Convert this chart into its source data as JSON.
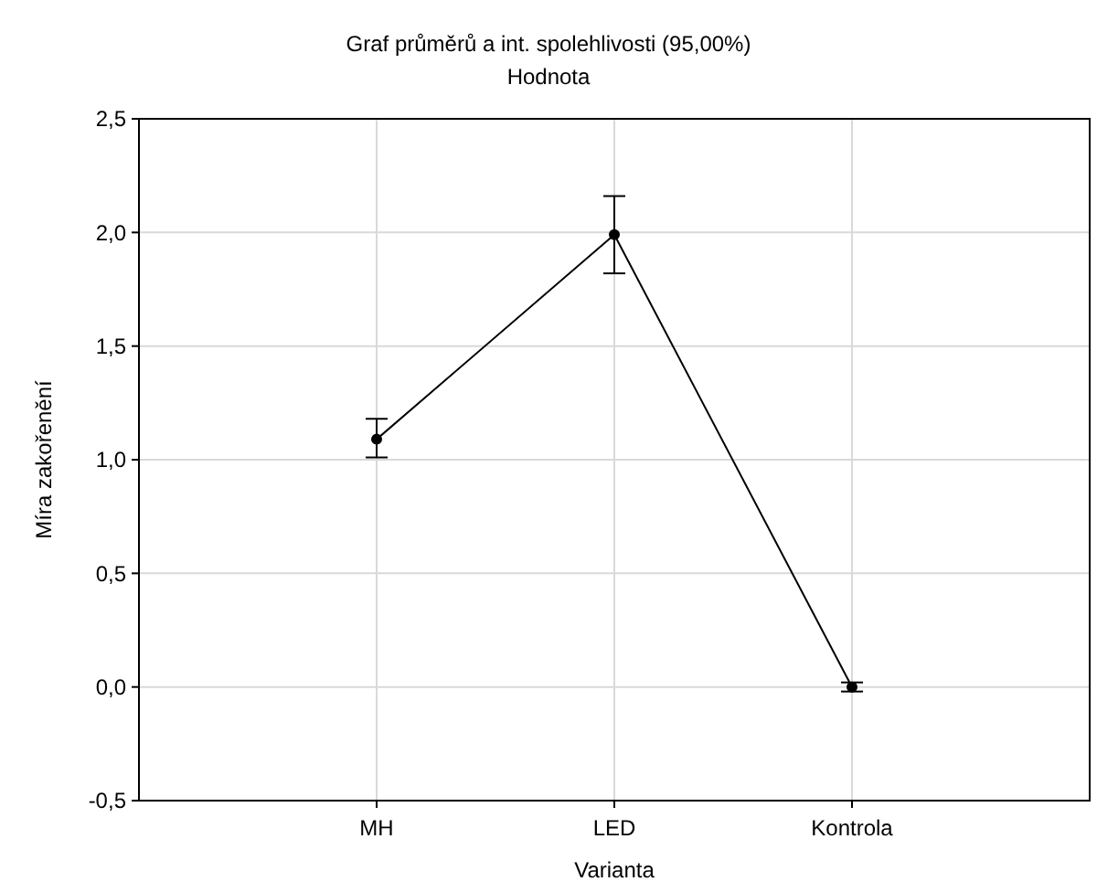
{
  "chart_data": {
    "type": "line",
    "title": "Graf průměrů a int. spolehlivosti (95,00%)",
    "subtitle": "Hodnota",
    "xlabel": "Varianta",
    "ylabel": "Míra zakořenění",
    "categories": [
      "MH",
      "LED",
      "Kontrola"
    ],
    "series": [
      {
        "color": "#000000",
        "values": [
          1.09,
          1.99,
          0.0
        ],
        "errors": [
          [
            1.01,
            1.18
          ],
          [
            1.82,
            2.16
          ],
          0.02
        ]
      }
    ],
    "ylim": [
      -0.5,
      2.5
    ],
    "yticks": [
      {
        "value": -0.5,
        "label": "-0,5"
      },
      {
        "value": 0,
        "label": "0,0"
      },
      {
        "value": 0.5,
        "label": "0,5"
      },
      {
        "value": 1,
        "label": "1,0"
      },
      {
        "value": 1.5,
        "label": "1,5"
      },
      {
        "value": 2,
        "label": "2,0"
      },
      {
        "value": 2.5,
        "label": "2,5"
      }
    ],
    "grid": true,
    "marker": "circle",
    "line_style": "solid"
  }
}
